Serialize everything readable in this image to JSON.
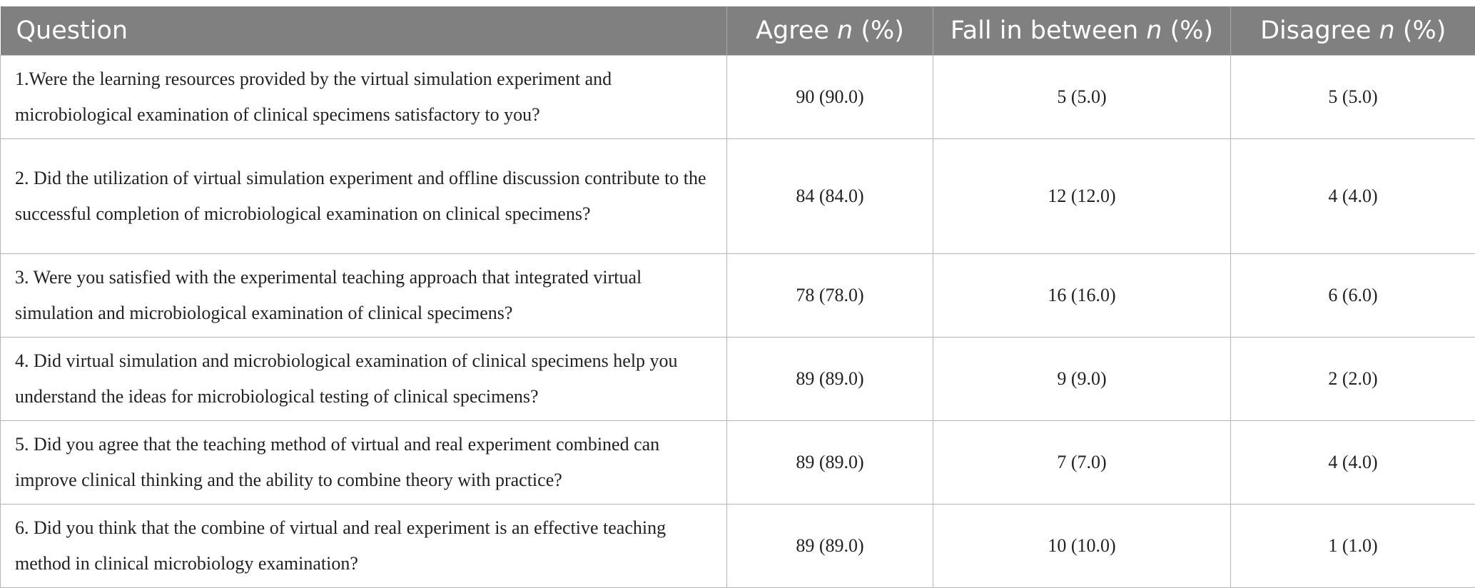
{
  "table": {
    "headers": {
      "question": "Question",
      "agree": "Agree",
      "fall_in_between": "Fall in between",
      "disagree": "Disagree",
      "n": "n",
      "pct": "(%)"
    },
    "rows": [
      {
        "question": "1.Were the learning resources provided by the virtual simulation experiment and microbiological examination of clinical specimens satisfactory to you?",
        "agree": "90 (90.0)",
        "fall_in_between": "5 (5.0)",
        "disagree": "5 (5.0)"
      },
      {
        "question": "2. Did the utilization of virtual simulation experiment and offline discussion contribute to the successful completion of microbiological examination on clinical specimens?",
        "agree": "84 (84.0)",
        "fall_in_between": "12 (12.0)",
        "disagree": "4 (4.0)"
      },
      {
        "question": "3. Were you satisfied with the experimental teaching approach that integrated virtual simulation and microbiological examination of clinical specimens?",
        "agree": "78 (78.0)",
        "fall_in_between": "16 (16.0)",
        "disagree": "6 (6.0)"
      },
      {
        "question": "4. Did virtual simulation and microbiological examination of clinical specimens help you understand the ideas for microbiological testing of clinical specimens?",
        "agree": "89 (89.0)",
        "fall_in_between": "9 (9.0)",
        "disagree": "2 (2.0)"
      },
      {
        "question": "5. Did you agree that the teaching method of virtual and real experiment combined can improve clinical thinking and the ability to combine theory with practice?",
        "agree": "89 (89.0)",
        "fall_in_between": "7 (7.0)",
        "disagree": "4 (4.0)"
      },
      {
        "question": "6. Did you think that the combine of virtual and real experiment is an effective teaching method in clinical microbiology examination?",
        "agree": "89 (89.0)",
        "fall_in_between": "10 (10.0)",
        "disagree": "1 (1.0)"
      }
    ]
  }
}
